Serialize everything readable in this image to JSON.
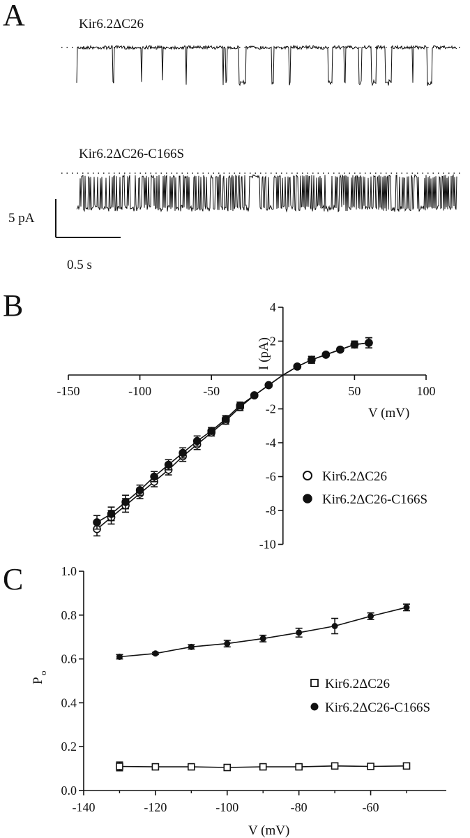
{
  "panelA": {
    "letter": "A",
    "trace1_label": "Kir6.2ΔC26",
    "trace2_label": "Kir6.2ΔC26-C166S",
    "scale_current": "5 pA",
    "scale_time": "0.5 s"
  },
  "panelB": {
    "letter": "B",
    "xlabel": "V (mV)",
    "ylabel": "I (pA)",
    "legend": [
      "Kir6.2ΔC26",
      "Kir6.2ΔC26-C166S"
    ]
  },
  "panelC": {
    "letter": "C",
    "xlabel": "V (mV)",
    "ylabel": "P",
    "ylabel_sub": "o",
    "legend": [
      "Kir6.2ΔC26",
      "Kir6.2ΔC26-C166S"
    ]
  },
  "chart_data": [
    {
      "type": "line",
      "panel": "A",
      "series": [
        {
          "name": "Kir6.2ΔC26",
          "open_probability_approx": 0.1
        },
        {
          "name": "Kir6.2ΔC26-C166S",
          "open_probability_approx": 0.6
        }
      ]
    },
    {
      "type": "scatter",
      "panel": "B",
      "xlabel": "V (mV)",
      "ylabel": "I (pA)",
      "xlim": [
        -150,
        100
      ],
      "ylim": [
        -10,
        4
      ],
      "xticks": [
        -150,
        -100,
        -50,
        50,
        100
      ],
      "yticks": [
        -10,
        -8,
        -6,
        -4,
        -2,
        2,
        4
      ],
      "legend_position": "bottom-right",
      "series": [
        {
          "name": "Kir6.2ΔC26",
          "marker": "open-circle",
          "x": [
            -130,
            -120,
            -110,
            -100,
            -90,
            -80,
            -70,
            -60,
            -50,
            -40,
            -30,
            -20,
            -10,
            10,
            20,
            30,
            40,
            50,
            60
          ],
          "y": [
            -9.1,
            -8.4,
            -7.7,
            -7.0,
            -6.3,
            -5.6,
            -4.8,
            -4.1,
            -3.4,
            -2.7,
            -1.9,
            -1.2,
            -0.6,
            0.5,
            0.9,
            1.2,
            1.5,
            1.8,
            1.9
          ],
          "err": [
            0.4,
            0.4,
            0.4,
            0.3,
            0.3,
            0.3,
            0.3,
            0.3,
            0.2,
            0.2,
            0.2,
            0.1,
            0.1,
            0.1,
            0.2,
            0.1,
            0.1,
            0.2,
            0.3
          ]
        },
        {
          "name": "Kir6.2ΔC26-C166S",
          "marker": "filled-circle",
          "x": [
            -130,
            -120,
            -110,
            -100,
            -90,
            -80,
            -70,
            -60,
            -50,
            -40,
            -30,
            -20,
            -10,
            10,
            20,
            30,
            40,
            50,
            60
          ],
          "y": [
            -8.7,
            -8.2,
            -7.5,
            -6.8,
            -6.0,
            -5.3,
            -4.6,
            -3.9,
            -3.3,
            -2.6,
            -1.8,
            -1.2,
            -0.6,
            0.5,
            0.9,
            1.2,
            1.5,
            1.8,
            1.9
          ],
          "err": [
            0.4,
            0.4,
            0.4,
            0.3,
            0.3,
            0.3,
            0.3,
            0.3,
            0.2,
            0.2,
            0.2,
            0.1,
            0.1,
            0.1,
            0.2,
            0.1,
            0.1,
            0.2,
            0.3
          ]
        }
      ]
    },
    {
      "type": "scatter",
      "panel": "C",
      "xlabel": "V (mV)",
      "ylabel": "Po",
      "xlim": [
        -140,
        -50
      ],
      "ylim": [
        0,
        1
      ],
      "xticks": [
        -140,
        -120,
        -100,
        -80,
        -60
      ],
      "yticks": [
        0.0,
        0.2,
        0.4,
        0.6,
        0.8,
        1.0
      ],
      "legend_position": "right",
      "series": [
        {
          "name": "Kir6.2ΔC26",
          "marker": "open-square",
          "x": [
            -130,
            -120,
            -110,
            -100,
            -90,
            -80,
            -70,
            -60,
            -50
          ],
          "y": [
            0.11,
            0.108,
            0.108,
            0.105,
            0.108,
            0.108,
            0.112,
            0.11,
            0.112
          ],
          "err": [
            0.02,
            0.01,
            0.01,
            0.01,
            0.01,
            0.01,
            0.01,
            0.01,
            0.01
          ]
        },
        {
          "name": "Kir6.2ΔC26-C166S",
          "marker": "filled-circle",
          "x": [
            -130,
            -120,
            -110,
            -100,
            -90,
            -80,
            -70,
            -60,
            -50
          ],
          "y": [
            0.61,
            0.625,
            0.655,
            0.67,
            0.693,
            0.72,
            0.75,
            0.795,
            0.835
          ],
          "err": [
            0.01,
            0.005,
            0.01,
            0.015,
            0.015,
            0.02,
            0.035,
            0.015,
            0.015
          ]
        }
      ]
    }
  ]
}
